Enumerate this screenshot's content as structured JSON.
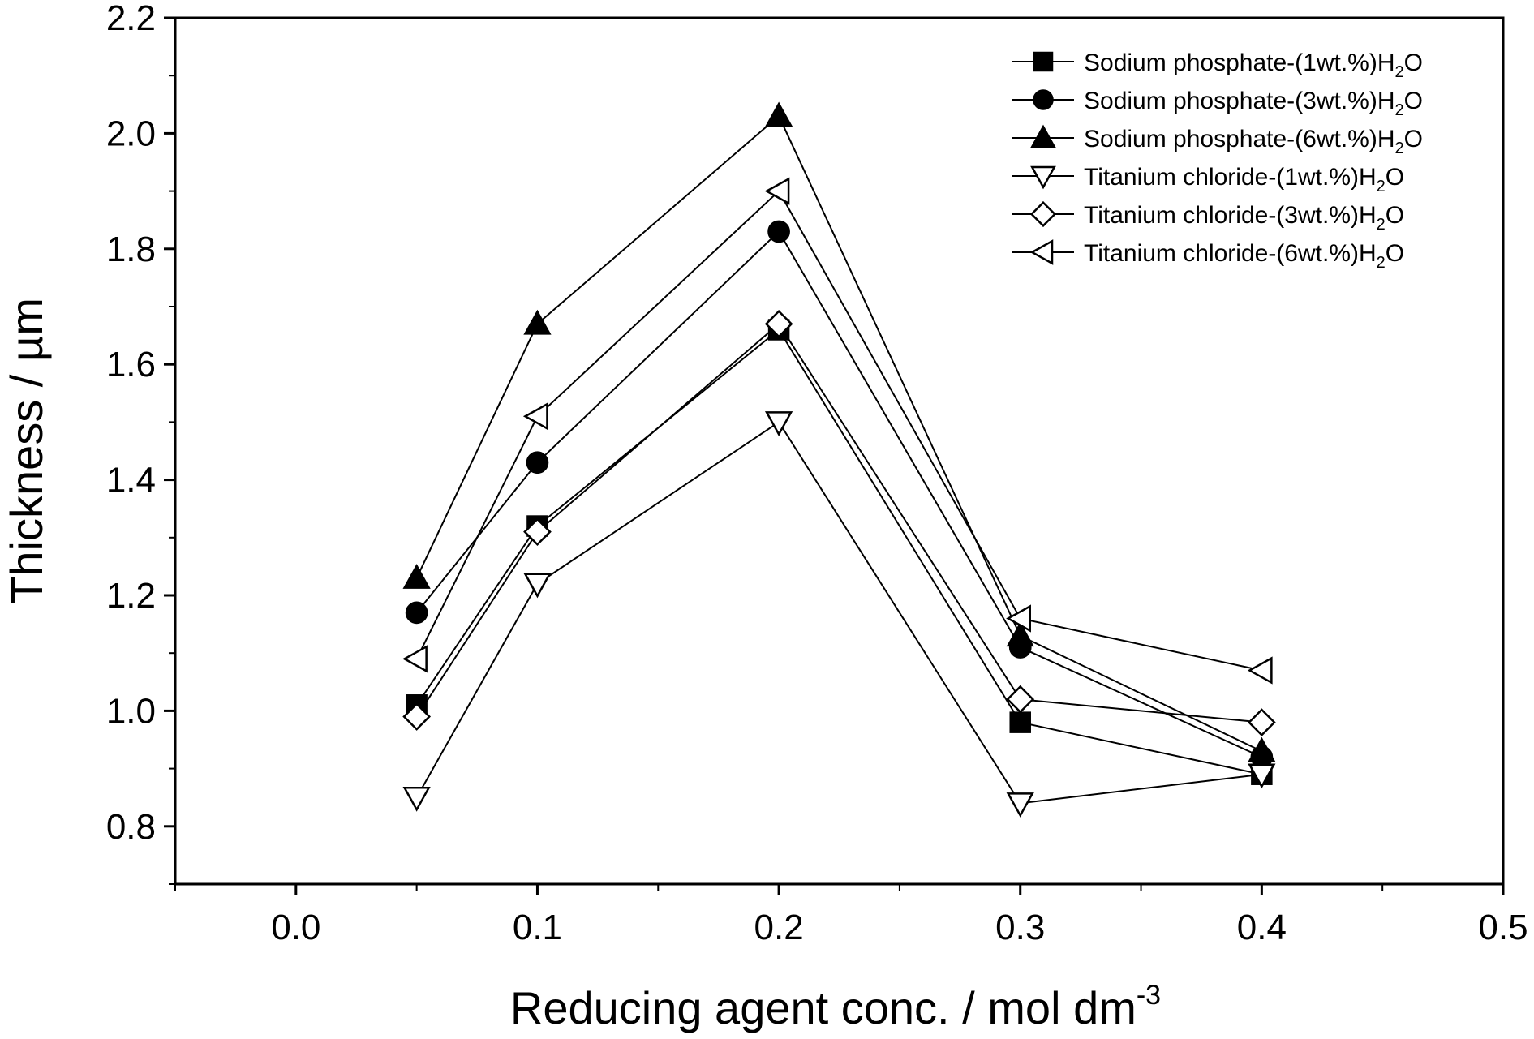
{
  "chart_data": {
    "type": "line",
    "xlabel": "Reducing agent conc. / mol dm",
    "xlabel_sup": "-3",
    "ylabel": "Thickness / µm",
    "xlim": [
      -0.05,
      0.5
    ],
    "ylim": [
      0.7,
      2.2
    ],
    "xticks": [
      "0.0",
      "0.1",
      "0.2",
      "0.3",
      "0.4",
      "0.5"
    ],
    "yticks": [
      "0.8",
      "1.0",
      "1.2",
      "1.4",
      "1.6",
      "1.8",
      "2.0",
      "2.2"
    ],
    "grid": false,
    "legend_position": "top-right",
    "x": [
      0.05,
      0.1,
      0.2,
      0.3,
      0.4
    ],
    "series": [
      {
        "name": "Sodium phosphate-(1wt.%)H",
        "sub": "2",
        "suffix": "O",
        "marker": "square",
        "filled": true,
        "values": [
          1.01,
          1.32,
          1.66,
          0.98,
          0.89
        ]
      },
      {
        "name": "Sodium phosphate-(3wt.%)H",
        "sub": "2",
        "suffix": "O",
        "marker": "circle",
        "filled": true,
        "values": [
          1.17,
          1.43,
          1.83,
          1.11,
          0.92
        ]
      },
      {
        "name": "Sodium phosphate-(6wt.%)H",
        "sub": "2",
        "suffix": "O",
        "marker": "triangle-up",
        "filled": true,
        "values": [
          1.23,
          1.67,
          2.03,
          1.13,
          0.93
        ]
      },
      {
        "name": "Titanium chloride-(1wt.%)H",
        "sub": "2",
        "suffix": "O",
        "marker": "triangle-down",
        "filled": false,
        "values": [
          0.85,
          1.22,
          1.5,
          0.84,
          0.89
        ]
      },
      {
        "name": "Titanium chloride-(3wt.%)H",
        "sub": "2",
        "suffix": "O",
        "marker": "diamond",
        "filled": false,
        "values": [
          0.99,
          1.31,
          1.67,
          1.02,
          0.98
        ]
      },
      {
        "name": "Titanium chloride-(6wt.%)H",
        "sub": "2",
        "suffix": "O",
        "marker": "triangle-left",
        "filled": false,
        "values": [
          1.09,
          1.51,
          1.9,
          1.16,
          1.07
        ]
      }
    ],
    "colors": {
      "line": "#000000",
      "marker_fill": "#000000",
      "open_fill": "#ffffff"
    }
  }
}
